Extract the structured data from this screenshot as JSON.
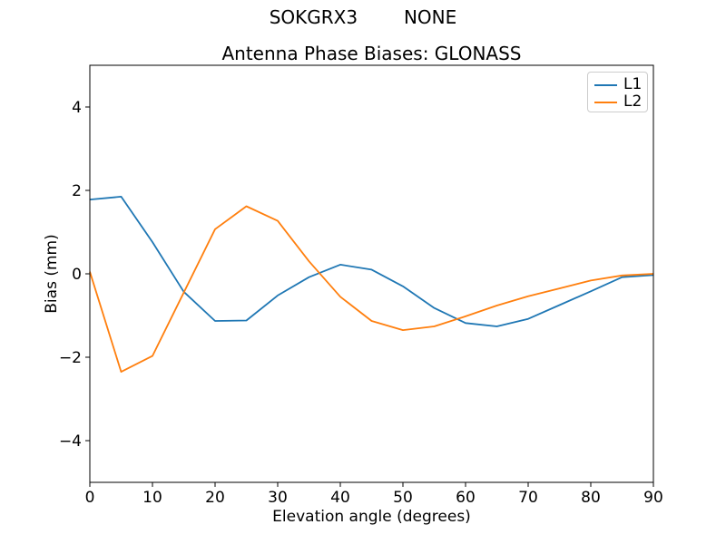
{
  "figure": {
    "suptitle": "SOKGRX3        NONE"
  },
  "chart_data": {
    "type": "line",
    "title": "Antenna Phase Biases: GLONASS",
    "xlabel": "Elevation angle (degrees)",
    "ylabel": "Bias (mm)",
    "xlim": [
      0,
      90
    ],
    "ylim": [
      -5,
      5
    ],
    "grid": false,
    "legend_position": "upper right",
    "xticks": [
      0,
      10,
      20,
      30,
      40,
      50,
      60,
      70,
      80,
      90
    ],
    "xticklabels": [
      "0",
      "10",
      "20",
      "30",
      "40",
      "50",
      "60",
      "70",
      "80",
      "90"
    ],
    "yticks": [
      -4,
      -2,
      0,
      2,
      4
    ],
    "yticklabels": [
      "−4",
      "−2",
      "0",
      "2",
      "4"
    ],
    "x": [
      0,
      5,
      10,
      15,
      20,
      25,
      30,
      35,
      40,
      45,
      50,
      55,
      60,
      65,
      70,
      75,
      80,
      85,
      90
    ],
    "series": [
      {
        "name": "L1",
        "color": "#1f77b4",
        "values": [
          1.78,
          1.85,
          0.76,
          -0.43,
          -1.13,
          -1.12,
          -0.52,
          -0.08,
          0.22,
          0.1,
          -0.3,
          -0.82,
          -1.18,
          -1.26,
          -1.08,
          -0.75,
          -0.42,
          -0.08,
          -0.03
        ]
      },
      {
        "name": "L2",
        "color": "#ff7f0e",
        "values": [
          0.05,
          -2.35,
          -1.97,
          -0.45,
          1.07,
          1.62,
          1.27,
          0.3,
          -0.55,
          -1.13,
          -1.35,
          -1.26,
          -1.02,
          -0.76,
          -0.54,
          -0.35,
          -0.16,
          -0.04,
          0.0
        ]
      }
    ]
  }
}
